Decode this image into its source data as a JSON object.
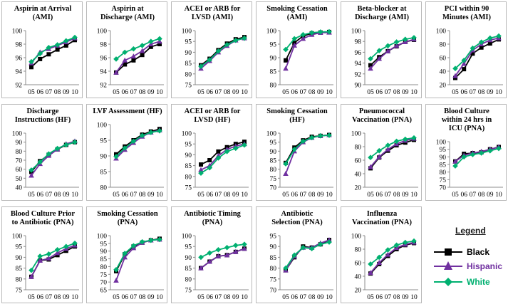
{
  "legend": {
    "title": "Legend",
    "items": [
      {
        "label": "Black",
        "color": "#000000",
        "marker": "square"
      },
      {
        "label": "Hispanic",
        "color": "#7030a0",
        "marker": "triangle"
      },
      {
        "label": "White",
        "color": "#00b070",
        "marker": "diamond"
      }
    ]
  },
  "chart_data": [
    {
      "type": "line",
      "title": "Aspirin at Arrival (AMI)",
      "categories": [
        "05",
        "06",
        "07",
        "08",
        "09",
        "10"
      ],
      "ylim": [
        92,
        100
      ],
      "yticks": [
        92,
        94,
        96,
        98,
        100
      ],
      "series": [
        {
          "name": "Black",
          "values": [
            94.6,
            95.8,
            96.5,
            97.2,
            97.8,
            98.6
          ]
        },
        {
          "name": "Hispanic",
          "values": [
            95.2,
            96.8,
            97.3,
            97.8,
            98.3,
            98.9
          ]
        },
        {
          "name": "White",
          "values": [
            95.4,
            96.6,
            97.5,
            97.9,
            98.5,
            99.0
          ]
        }
      ]
    },
    {
      "type": "line",
      "title": "Aspirin at Discharge (AMI)",
      "categories": [
        "05",
        "06",
        "07",
        "08",
        "09",
        "10"
      ],
      "ylim": [
        92,
        100
      ],
      "yticks": [
        92,
        94,
        96,
        98,
        100
      ],
      "series": [
        {
          "name": "Black",
          "values": [
            93.8,
            95.0,
            95.6,
            96.4,
            97.6,
            98.0
          ]
        },
        {
          "name": "Hispanic",
          "values": [
            93.8,
            95.6,
            96.2,
            97.0,
            98.0,
            98.4
          ]
        },
        {
          "name": "White",
          "values": [
            95.8,
            96.8,
            97.3,
            97.8,
            98.4,
            98.8
          ]
        }
      ]
    },
    {
      "type": "line",
      "title": "ACEI or ARB for LVSD (AMI)",
      "categories": [
        "05",
        "06",
        "07",
        "08",
        "09",
        "10"
      ],
      "ylim": [
        75,
        100
      ],
      "yticks": [
        75,
        80,
        85,
        90,
        95,
        100
      ],
      "series": [
        {
          "name": "Black",
          "values": [
            84,
            87,
            91,
            94,
            96,
            97
          ]
        },
        {
          "name": "Hispanic",
          "values": [
            82.5,
            86,
            90,
            93,
            95.5,
            96.5
          ]
        },
        {
          "name": "White",
          "values": [
            83.5,
            86.5,
            90.5,
            93.5,
            95.5,
            96.5
          ]
        }
      ]
    },
    {
      "type": "line",
      "title": "Smoking Cessation (AMI)",
      "categories": [
        "05",
        "06",
        "07",
        "08",
        "09",
        "10"
      ],
      "ylim": [
        80,
        100
      ],
      "yticks": [
        80,
        85,
        90,
        95,
        100
      ],
      "series": [
        {
          "name": "Black",
          "values": [
            89,
            95.5,
            98,
            99,
            99.3,
            99.5
          ]
        },
        {
          "name": "Hispanic",
          "values": [
            86,
            94.5,
            97,
            98.5,
            99.2,
            99.3
          ]
        },
        {
          "name": "White",
          "values": [
            93,
            97,
            98.5,
            99.2,
            99.5,
            99.6
          ]
        }
      ]
    },
    {
      "type": "line",
      "title": "Beta-blocker at Discharge (AMI)",
      "categories": [
        "05",
        "06",
        "07",
        "08",
        "09",
        "10"
      ],
      "ylim": [
        90,
        100
      ],
      "yticks": [
        90,
        92,
        94,
        96,
        98,
        100
      ],
      "series": [
        {
          "name": "Black",
          "values": [
            93.6,
            95.1,
            96.2,
            97.1,
            97.9,
            98.3
          ]
        },
        {
          "name": "Hispanic",
          "values": [
            93.0,
            94.8,
            96.2,
            97.2,
            97.9,
            98.4
          ]
        },
        {
          "name": "White",
          "values": [
            94.8,
            96.3,
            97.2,
            97.9,
            98.4,
            98.7
          ]
        }
      ]
    },
    {
      "type": "line",
      "title": "PCI within 90 Minutes (AMI)",
      "categories": [
        "05",
        "06",
        "07",
        "08",
        "09",
        "10"
      ],
      "ylim": [
        20,
        100
      ],
      "yticks": [
        20,
        40,
        60,
        80,
        100
      ],
      "series": [
        {
          "name": "Black",
          "values": [
            30,
            43,
            66,
            75,
            81,
            87
          ]
        },
        {
          "name": "Hispanic",
          "values": [
            33,
            51,
            71,
            80,
            86,
            89
          ]
        },
        {
          "name": "White",
          "values": [
            44,
            56,
            74,
            83,
            89,
            92
          ]
        }
      ]
    },
    {
      "type": "line",
      "title": "Discharge Instructions (HF)",
      "categories": [
        "05",
        "06",
        "07",
        "08",
        "09",
        "10"
      ],
      "ylim": [
        40,
        100
      ],
      "yticks": [
        40,
        50,
        60,
        70,
        80,
        90,
        100
      ],
      "series": [
        {
          "name": "Black",
          "values": [
            57,
            69,
            76,
            82,
            87,
            90
          ]
        },
        {
          "name": "Hispanic",
          "values": [
            53,
            66,
            75,
            82,
            88,
            91
          ]
        },
        {
          "name": "White",
          "values": [
            59,
            68,
            77,
            83,
            87,
            90
          ]
        }
      ]
    },
    {
      "type": "line",
      "title": "LVF Assessment (HF)",
      "categories": [
        "05",
        "06",
        "07",
        "08",
        "09",
        "10"
      ],
      "ylim": [
        80,
        100
      ],
      "yticks": [
        80,
        85,
        90,
        95,
        100
      ],
      "series": [
        {
          "name": "Black",
          "values": [
            90.5,
            93,
            95,
            96.8,
            97.8,
            98.6
          ]
        },
        {
          "name": "Hispanic",
          "values": [
            89.2,
            92,
            94.2,
            96.2,
            97.5,
            98.2
          ]
        },
        {
          "name": "White",
          "values": [
            89.8,
            92.5,
            94.7,
            96.5,
            97.5,
            98
          ]
        }
      ]
    },
    {
      "type": "line",
      "title": "ACEI or ARB for LVSD (HF)",
      "categories": [
        "05",
        "06",
        "07",
        "08",
        "09",
        "10"
      ],
      "ylim": [
        75,
        100
      ],
      "yticks": [
        75,
        80,
        85,
        90,
        95,
        100
      ],
      "series": [
        {
          "name": "Black",
          "values": [
            85.5,
            87.5,
            91.5,
            93.5,
            95,
            96
          ]
        },
        {
          "name": "Hispanic",
          "values": [
            83,
            85,
            89.5,
            92.5,
            94,
            95
          ]
        },
        {
          "name": "White",
          "values": [
            81.5,
            84,
            88.5,
            91.5,
            93,
            94.5
          ]
        }
      ]
    },
    {
      "type": "line",
      "title": "Smoking Cessation (HF)",
      "categories": [
        "05",
        "06",
        "07",
        "08",
        "09",
        "10"
      ],
      "ylim": [
        70,
        100
      ],
      "yticks": [
        70,
        75,
        80,
        85,
        90,
        95,
        100
      ],
      "series": [
        {
          "name": "Black",
          "values": [
            83.5,
            92,
            96,
            98,
            98.5,
            99
          ]
        },
        {
          "name": "Hispanic",
          "values": [
            77.5,
            90,
            95,
            97.5,
            98.5,
            99
          ]
        },
        {
          "name": "White",
          "values": [
            83,
            91,
            95.5,
            97.5,
            98.5,
            98.8
          ]
        }
      ]
    },
    {
      "type": "line",
      "title": "Pneumococcal Vaccination (PNA)",
      "categories": [
        "05",
        "06",
        "07",
        "08",
        "09",
        "10"
      ],
      "ylim": [
        20,
        100
      ],
      "yticks": [
        20,
        40,
        60,
        80,
        100
      ],
      "series": [
        {
          "name": "Black",
          "values": [
            48,
            64,
            74,
            82,
            86,
            90
          ]
        },
        {
          "name": "Hispanic",
          "values": [
            50,
            65,
            76,
            84,
            89,
            92
          ]
        },
        {
          "name": "White",
          "values": [
            64,
            74,
            82,
            88,
            91,
            93
          ]
        }
      ]
    },
    {
      "type": "line",
      "title": "Blood Culture within 24 hrs in ICU (PNA)",
      "categories": [
        "05",
        "06",
        "07",
        "08",
        "09",
        "10"
      ],
      "ylim": [
        70,
        100
      ],
      "yticks": [
        70,
        75,
        80,
        85,
        90,
        95,
        100
      ],
      "series": [
        {
          "name": "Black",
          "values": [
            87,
            92,
            92.5,
            93,
            95,
            96.5
          ]
        },
        {
          "name": "Hispanic",
          "values": [
            87,
            91,
            92.5,
            93.5,
            95,
            96.5
          ]
        },
        {
          "name": "White",
          "values": [
            84,
            90,
            91.5,
            92.5,
            94,
            95.5
          ]
        }
      ]
    },
    {
      "type": "line",
      "title": "Blood Culture Prior to Antibiotic (PNA)",
      "categories": [
        "05",
        "06",
        "07",
        "08",
        "09",
        "10"
      ],
      "ylim": [
        75,
        100
      ],
      "yticks": [
        75,
        80,
        85,
        90,
        95,
        100
      ],
      "series": [
        {
          "name": "Black",
          "values": [
            81,
            88.5,
            89,
            91,
            93,
            95
          ]
        },
        {
          "name": "Hispanic",
          "values": [
            81,
            88.5,
            89.5,
            92,
            94,
            95.5
          ]
        },
        {
          "name": "White",
          "values": [
            84,
            90.5,
            91.5,
            93.5,
            95,
            96.5
          ]
        }
      ]
    },
    {
      "type": "line",
      "title": "Smoking Cessation (PNA)",
      "categories": [
        "05",
        "06",
        "07",
        "08",
        "09",
        "10"
      ],
      "ylim": [
        65,
        100
      ],
      "yticks": [
        65,
        70,
        75,
        80,
        85,
        90,
        95,
        100
      ],
      "series": [
        {
          "name": "Black",
          "values": [
            77,
            88,
            93,
            95.5,
            97,
            98
          ]
        },
        {
          "name": "Hispanic",
          "values": [
            71,
            86,
            92,
            95.5,
            97,
            97.5
          ]
        },
        {
          "name": "White",
          "values": [
            78,
            88.5,
            93.5,
            96,
            97,
            97.5
          ]
        }
      ]
    },
    {
      "type": "line",
      "title": "Antibiotic Timing (PNA)",
      "categories": [
        "05",
        "06",
        "07",
        "08",
        "09",
        "10"
      ],
      "ylim": [
        75,
        100
      ],
      "yticks": [
        75,
        80,
        85,
        90,
        95,
        100
      ],
      "series": [
        {
          "name": "Black",
          "values": [
            85,
            88,
            90.5,
            91,
            92.5,
            94
          ]
        },
        {
          "name": "Hispanic",
          "values": [
            85,
            88,
            90.5,
            91,
            92.5,
            94
          ]
        },
        {
          "name": "White",
          "values": [
            90,
            92,
            93.5,
            94.5,
            95.5,
            96
          ]
        }
      ]
    },
    {
      "type": "line",
      "title": "Antibiotic Selection (PNA)",
      "categories": [
        "05",
        "06",
        "07",
        "08",
        "09",
        "10"
      ],
      "ylim": [
        70,
        95
      ],
      "yticks": [
        70,
        75,
        80,
        85,
        90,
        95
      ],
      "series": [
        {
          "name": "Black",
          "values": [
            79,
            85,
            90,
            89.5,
            91,
            93
          ]
        },
        {
          "name": "Hispanic",
          "values": [
            79,
            85.5,
            89.5,
            89.5,
            91.5,
            93
          ]
        },
        {
          "name": "White",
          "values": [
            80,
            86,
            89.5,
            89,
            91,
            92
          ]
        }
      ]
    },
    {
      "type": "line",
      "title": "Influenza Vaccination (PNA)",
      "categories": [
        "05",
        "06",
        "07",
        "08",
        "09",
        "10"
      ],
      "ylim": [
        20,
        100
      ],
      "yticks": [
        20,
        40,
        60,
        80,
        100
      ],
      "series": [
        {
          "name": "Black",
          "values": [
            44,
            58,
            70,
            80,
            86,
            89
          ]
        },
        {
          "name": "Hispanic",
          "values": [
            45,
            60,
            72,
            82,
            87,
            90
          ]
        },
        {
          "name": "White",
          "values": [
            58,
            68,
            79,
            86,
            90,
            92
          ]
        }
      ]
    }
  ]
}
